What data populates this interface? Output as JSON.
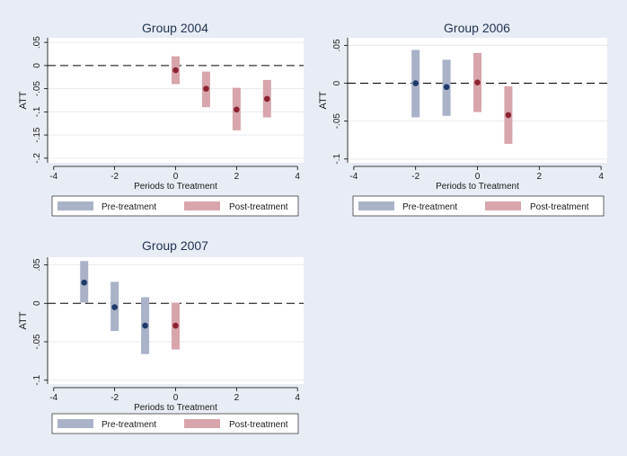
{
  "colors": {
    "background": "#e8ecf4",
    "plot_bg": "#ffffff",
    "grid": "#e6eaf0",
    "pre_bar": "#a9b2c7",
    "pre_point": "#1f3a68",
    "post_bar": "#d7a5ab",
    "post_point": "#8c2332",
    "text": "#1a1a1a",
    "title": "#1f3352"
  },
  "chart_data": [
    {
      "type": "scatter",
      "title": "Group 2004",
      "xlabel": "Periods to Treatment",
      "ylabel": "ATT",
      "xlim": [
        -4.2,
        4.2
      ],
      "ylim": [
        -0.21,
        0.06
      ],
      "xticks": [
        -4,
        -2,
        0,
        2,
        4
      ],
      "xtick_labels": [
        "-4",
        "-2",
        "0",
        "2",
        "4"
      ],
      "yticks": [
        0.05,
        0,
        -0.05,
        -0.1,
        -0.15,
        -0.2
      ],
      "ytick_labels": [
        ".05",
        "0",
        "-.05",
        "-.1",
        "-.15",
        "-.2"
      ],
      "reference_line": 0,
      "grid": true,
      "legend": [
        "Pre-treatment",
        "Post-treatment"
      ],
      "legend_position": "bottom",
      "series": [
        {
          "name": "Pre-treatment",
          "points": []
        },
        {
          "name": "Post-treatment",
          "points": [
            {
              "x": 0,
              "y": -0.01,
              "lo": -0.04,
              "hi": 0.02
            },
            {
              "x": 1,
              "y": -0.05,
              "lo": -0.09,
              "hi": -0.013
            },
            {
              "x": 2,
              "y": -0.095,
              "lo": -0.14,
              "hi": -0.048
            },
            {
              "x": 3,
              "y": -0.072,
              "lo": -0.112,
              "hi": -0.031
            }
          ]
        }
      ]
    },
    {
      "type": "scatter",
      "title": "Group 2006",
      "xlabel": "Periods to Treatment",
      "ylabel": "ATT",
      "xlim": [
        -4.2,
        4.2
      ],
      "ylim": [
        -0.105,
        0.06
      ],
      "xticks": [
        -4,
        -2,
        0,
        2,
        4
      ],
      "xtick_labels": [
        "-4",
        "-2",
        "0",
        "2",
        "4"
      ],
      "yticks": [
        0.05,
        0,
        -0.05,
        -0.1
      ],
      "ytick_labels": [
        ".05",
        "0",
        "-.05",
        "-.1"
      ],
      "reference_line": 0,
      "grid": true,
      "legend": [
        "Pre-treatment",
        "Post-treatment"
      ],
      "legend_position": "bottom",
      "series": [
        {
          "name": "Pre-treatment",
          "points": [
            {
              "x": -2,
              "y": 0,
              "lo": -0.045,
              "hi": 0.044
            },
            {
              "x": -1,
              "y": -0.005,
              "lo": -0.043,
              "hi": 0.031
            }
          ]
        },
        {
          "name": "Post-treatment",
          "points": [
            {
              "x": 0,
              "y": 0.001,
              "lo": -0.038,
              "hi": 0.04
            },
            {
              "x": 1,
              "y": -0.042,
              "lo": -0.08,
              "hi": -0.004
            }
          ]
        }
      ]
    },
    {
      "type": "scatter",
      "title": "Group 2007",
      "xlabel": "Periods to Treatment",
      "ylabel": "ATT",
      "xlim": [
        -4.2,
        4.2
      ],
      "ylim": [
        -0.105,
        0.06
      ],
      "xticks": [
        -4,
        -2,
        0,
        2,
        4
      ],
      "xtick_labels": [
        "-4",
        "-2",
        "0",
        "2",
        "4"
      ],
      "yticks": [
        0.05,
        0,
        -0.05,
        -0.1
      ],
      "ytick_labels": [
        ".05",
        "0",
        "-.05",
        "-.1"
      ],
      "reference_line": 0,
      "grid": true,
      "legend": [
        "Pre-treatment",
        "Post-treatment"
      ],
      "legend_position": "bottom",
      "series": [
        {
          "name": "Pre-treatment",
          "points": [
            {
              "x": -3,
              "y": 0.027,
              "lo": 0.001,
              "hi": 0.055
            },
            {
              "x": -2,
              "y": -0.005,
              "lo": -0.036,
              "hi": 0.028
            },
            {
              "x": -1,
              "y": -0.029,
              "lo": -0.066,
              "hi": 0.008
            }
          ]
        },
        {
          "name": "Post-treatment",
          "points": [
            {
              "x": 0,
              "y": -0.029,
              "lo": -0.06,
              "hi": 0.001
            }
          ]
        }
      ]
    }
  ]
}
